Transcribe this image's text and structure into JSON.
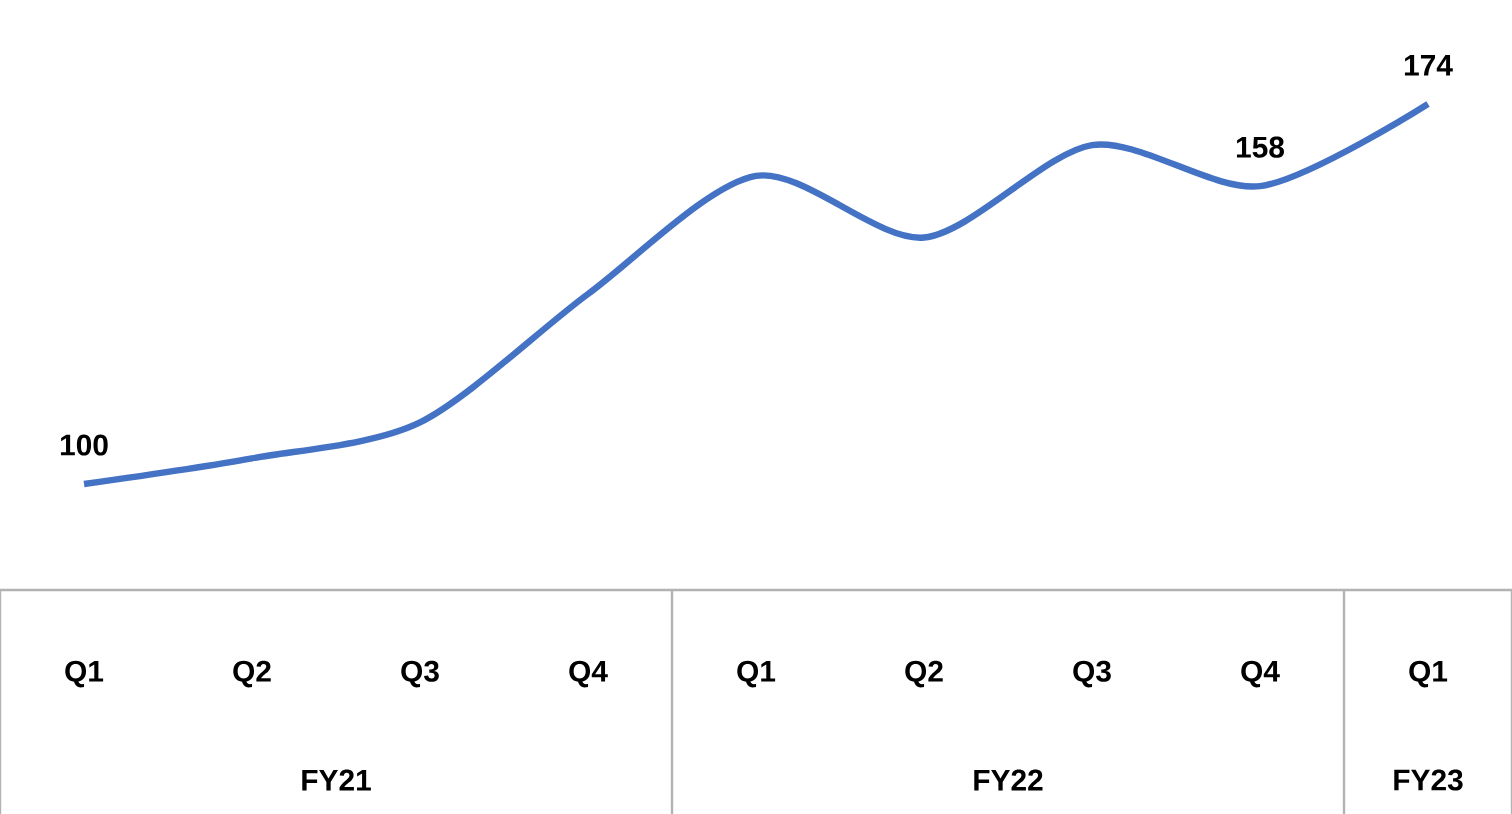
{
  "chart_data": {
    "type": "line",
    "categories": [
      "Q1",
      "Q2",
      "Q3",
      "Q4",
      "Q1",
      "Q2",
      "Q3",
      "Q4",
      "Q1"
    ],
    "series": [
      {
        "color": "#4472c4",
        "values": [
          100,
          105,
          112,
          137,
          160,
          148,
          166,
          158,
          174
        ],
        "value_labels": [
          "100",
          null,
          null,
          null,
          null,
          null,
          null,
          "158",
          "174"
        ]
      }
    ],
    "annotations": [
      "FY21",
      "FY22",
      "FY23"
    ],
    "marker": "none"
  }
}
